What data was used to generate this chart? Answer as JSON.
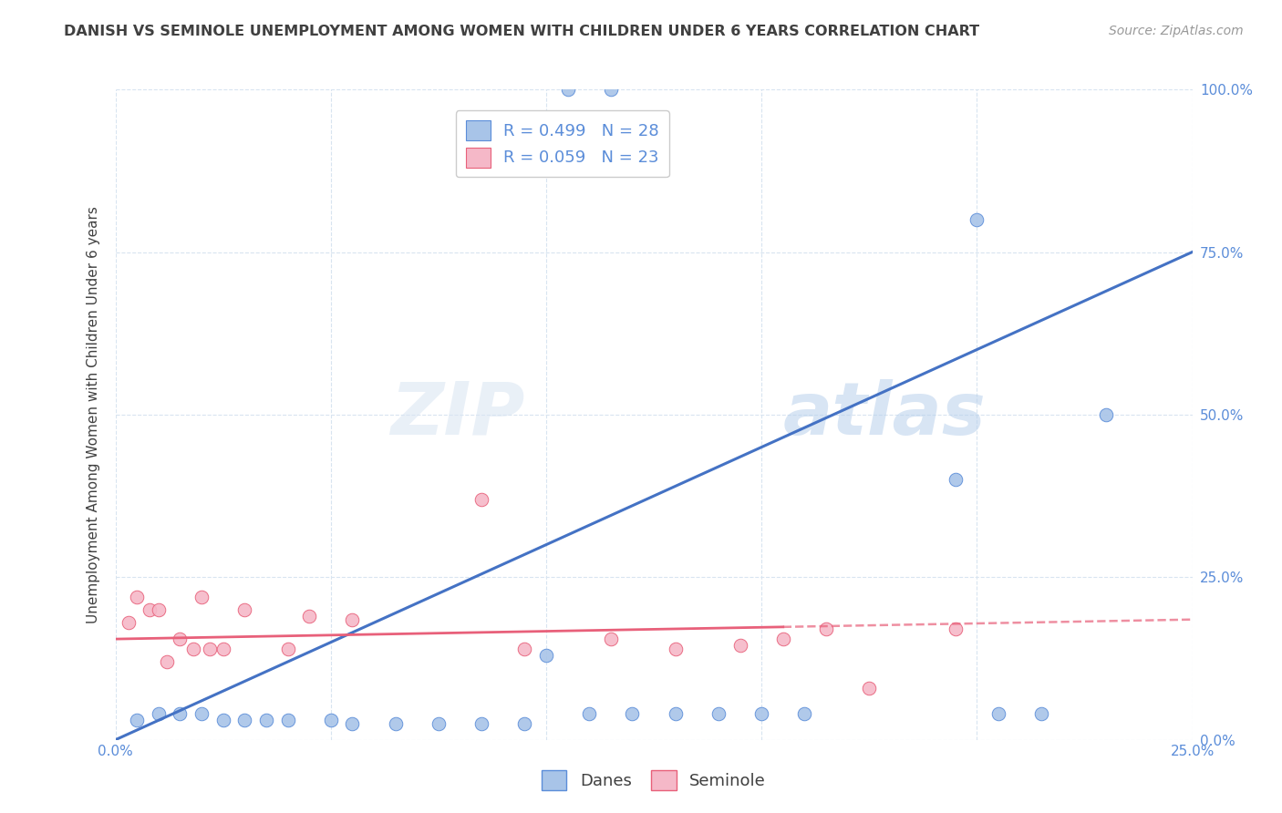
{
  "title": "DANISH VS SEMINOLE UNEMPLOYMENT AMONG WOMEN WITH CHILDREN UNDER 6 YEARS CORRELATION CHART",
  "source": "Source: ZipAtlas.com",
  "ylabel": "Unemployment Among Women with Children Under 6 years",
  "blue_R": 0.499,
  "blue_N": 28,
  "pink_R": 0.059,
  "pink_N": 23,
  "blue_fill": "#A8C4E8",
  "pink_fill": "#F5B8C8",
  "blue_edge": "#5B8DD9",
  "pink_edge": "#E8607A",
  "blue_line_color": "#4472C4",
  "pink_line_color": "#E8607A",
  "legend_blue_label": "Danes",
  "legend_pink_label": "Seminole",
  "xlim": [
    0.0,
    0.25
  ],
  "ylim": [
    0.0,
    1.0
  ],
  "blue_x": [
    0.105,
    0.115,
    0.23,
    0.2,
    0.005,
    0.01,
    0.015,
    0.02,
    0.025,
    0.03,
    0.035,
    0.04,
    0.05,
    0.055,
    0.065,
    0.075,
    0.085,
    0.095,
    0.1,
    0.11,
    0.12,
    0.13,
    0.14,
    0.15,
    0.16,
    0.195,
    0.205,
    0.215
  ],
  "blue_y": [
    1.0,
    1.0,
    0.5,
    0.8,
    0.03,
    0.04,
    0.04,
    0.04,
    0.03,
    0.03,
    0.03,
    0.03,
    0.03,
    0.025,
    0.025,
    0.025,
    0.025,
    0.025,
    0.13,
    0.04,
    0.04,
    0.04,
    0.04,
    0.04,
    0.04,
    0.4,
    0.04,
    0.04
  ],
  "pink_x": [
    0.003,
    0.005,
    0.008,
    0.01,
    0.012,
    0.015,
    0.018,
    0.02,
    0.022,
    0.025,
    0.03,
    0.04,
    0.045,
    0.055,
    0.085,
    0.095,
    0.115,
    0.13,
    0.145,
    0.155,
    0.165,
    0.175,
    0.195
  ],
  "pink_y": [
    0.18,
    0.22,
    0.2,
    0.2,
    0.12,
    0.155,
    0.14,
    0.22,
    0.14,
    0.14,
    0.2,
    0.14,
    0.19,
    0.185,
    0.37,
    0.14,
    0.155,
    0.14,
    0.145,
    0.155,
    0.17,
    0.08,
    0.17
  ],
  "blue_line_x0": 0.0,
  "blue_line_y0": 0.0,
  "blue_line_x1": 0.25,
  "blue_line_y1": 0.75,
  "pink_line_x0": 0.0,
  "pink_line_y0": 0.155,
  "pink_line_x1": 0.25,
  "pink_line_y1": 0.185,
  "pink_line_solid_end": 0.155,
  "watermark": "ZIPatlas",
  "marker_size": 110,
  "axis_color": "#5B8DD9",
  "grid_color": "#D8E4F0",
  "title_color": "#404040",
  "source_color": "#999999",
  "right_tick_color": "#5B8DD9"
}
